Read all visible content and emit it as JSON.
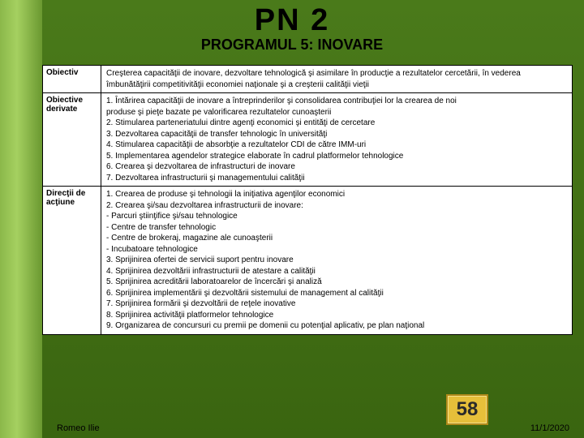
{
  "header": {
    "title": "PN 2",
    "subtitle": "PROGRAMUL 5:  INOVARE"
  },
  "rows": [
    {
      "label": "Obiectiv",
      "content": "Creşterea capacităţii de inovare, dezvoltare tehnologică şi asimilare în producţie a rezultatelor cercetării, în vederea îmbunătăţirii competitivităţii economiei naţionale şi a creşterii calităţii vieţii"
    },
    {
      "label": "Obiective derivate",
      "content": "1. Întărirea capacităţii de inovare a întreprinderilor şi consolidarea contribuţiei lor la crearea de noi\n    produse şi pieţe bazate pe valorificarea rezultatelor cunoaşterii\n2. Stimularea parteneriatului dintre agenţi economici şi entităţi de cercetare\n3. Dezvoltarea capacităţii de transfer tehnologic în universităţi\n4. Stimularea capacităţii de absorbţie a rezultatelor CDI de către IMM-uri\n5. Implementarea agendelor strategice elaborate în cadrul platformelor tehnologice\n6. Crearea şi dezvoltarea de infrastructuri de inovare\n7. Dezvoltarea infrastructurii şi managementului calităţii"
    },
    {
      "label": "Direcţii de acţiune",
      "content": "1. Crearea de produse şi tehnologii la iniţiativa agenţilor economici\n2. Crearea şi/sau dezvoltarea infrastructurii de inovare:\n- Parcuri ştiinţifice şi/sau tehnologice\n- Centre de transfer tehnologic\n- Centre de brokeraj, magazine ale cunoaşterii\n- Incubatoare tehnologice\n3. Sprijinirea ofertei de servicii suport pentru inovare\n4. Sprijinirea dezvoltării infrastructurii de atestare a calităţii\n5. Sprijinirea acreditării laboratoarelor de încercări şi analiză\n6. Sprijinirea implementării şi dezvoltării sistemului de management al calităţii\n7. Sprijinirea formării şi dezvoltării de reţele inovative\n8. Sprijinirea activităţii platformelor tehnologice\n9. Organizarea de concursuri cu premii pe domenii cu potenţial aplicativ, pe plan naţional"
    }
  ],
  "footer": {
    "author": "Romeo Ilie",
    "date": "11/1/2020"
  },
  "badge": {
    "number": "58",
    "bg": "#e6bf3a",
    "border": "#b08a1a"
  }
}
